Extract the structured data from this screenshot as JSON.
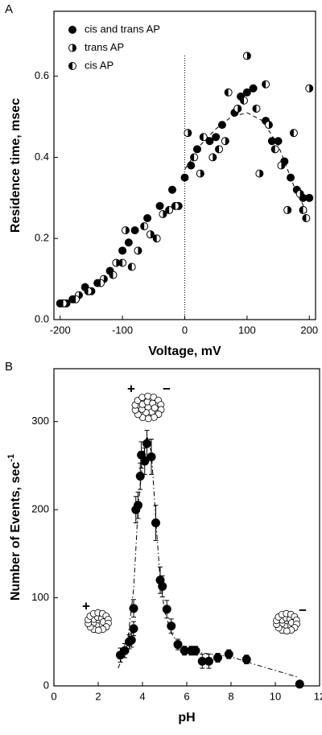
{
  "chart_data": [
    {
      "type": "scatter",
      "panel_label": "A",
      "x_label": "Voltage, mV",
      "y_label": "Residence time, msec",
      "xlim": [
        -210,
        210
      ],
      "ylim": [
        0,
        0.76
      ],
      "xticks": [
        -200,
        -100,
        0,
        100,
        200
      ],
      "yticks": [
        {
          "value": 0,
          "label": "0.0"
        },
        0.2,
        0.4,
        0.6
      ],
      "legend": "upper left",
      "vline": 0,
      "fit": {
        "x": [
          0,
          25,
          50,
          75,
          100,
          125,
          150,
          175,
          200
        ],
        "values": [
          0.37,
          0.43,
          0.47,
          0.5,
          0.51,
          0.49,
          0.43,
          0.33,
          0.25
        ],
        "dash": "dashed"
      },
      "series": [
        {
          "name": "cis and trans AP",
          "marker": "full",
          "color": "#000000",
          "x": [
            -200,
            -180,
            -160,
            -140,
            -120,
            -100,
            -90,
            -80,
            -60,
            -40,
            -20,
            0,
            10,
            20,
            40,
            50,
            60,
            80,
            90,
            100,
            110,
            130,
            140,
            150,
            160,
            170,
            180,
            190,
            200
          ],
          "values": [
            0.04,
            0.05,
            0.08,
            0.09,
            0.12,
            0.17,
            0.19,
            0.22,
            0.25,
            0.28,
            0.32,
            0.35,
            0.38,
            0.42,
            0.44,
            0.45,
            0.48,
            0.51,
            0.55,
            0.56,
            0.57,
            0.49,
            0.44,
            0.44,
            0.39,
            0.35,
            0.32,
            0.3,
            0.3
          ]
        },
        {
          "name": "trans AP",
          "marker": "half-right",
          "color": "#000000",
          "x": [
            -190,
            -170,
            -150,
            -130,
            -110,
            -95,
            -75,
            -55,
            -35,
            -10,
            5,
            25,
            45,
            65,
            85,
            100,
            120,
            135,
            155,
            165,
            185,
            200
          ],
          "values": [
            0.04,
            0.06,
            0.07,
            0.1,
            0.14,
            0.22,
            0.17,
            0.21,
            0.26,
            0.28,
            0.46,
            0.36,
            0.4,
            0.44,
            0.52,
            0.65,
            0.36,
            0.48,
            0.38,
            0.27,
            0.31,
            0.57
          ]
        },
        {
          "name": "cis AP",
          "marker": "half-left",
          "color": "#000000",
          "x": [
            -195,
            -175,
            -155,
            -135,
            -115,
            -100,
            -85,
            -65,
            -45,
            -25,
            -15,
            15,
            30,
            55,
            70,
            95,
            115,
            130,
            145,
            175,
            190,
            195
          ],
          "values": [
            0.04,
            0.05,
            0.07,
            0.09,
            0.11,
            0.14,
            0.13,
            0.23,
            0.2,
            0.27,
            0.28,
            0.4,
            0.45,
            0.42,
            0.56,
            0.54,
            0.52,
            0.58,
            0.42,
            0.46,
            0.27,
            0.25
          ]
        }
      ]
    },
    {
      "type": "scatter",
      "panel_label": "B",
      "x_label": "pH",
      "y_label": "Number of Events, sec",
      "y_label_superscript": "-1",
      "xlim": [
        0,
        12
      ],
      "ylim": [
        0,
        360
      ],
      "xticks": [
        0,
        2,
        4,
        6,
        8,
        10,
        12
      ],
      "yticks": [
        0,
        100,
        200,
        300
      ],
      "annotations": [
        "+",
        "−",
        "+",
        "−"
      ],
      "fit": {
        "x": [
          2.9,
          3.3,
          3.6,
          3.8,
          4.0,
          4.2,
          4.4,
          4.6,
          4.8,
          5.0,
          5.3,
          5.7,
          6.5,
          8,
          9,
          11
        ],
        "values": [
          20,
          45,
          110,
          200,
          255,
          285,
          265,
          190,
          120,
          85,
          60,
          45,
          38,
          33,
          25,
          10
        ],
        "dash": "dashdot"
      },
      "series": [
        {
          "marker": "full",
          "color": "#000000",
          "x": [
            3.0,
            3.2,
            3.4,
            3.5,
            3.6,
            3.6,
            3.7,
            3.8,
            3.9,
            3.95,
            4.1,
            4.2,
            4.4,
            4.6,
            4.8,
            4.9,
            5.1,
            5.3,
            5.6,
            5.9,
            6.2,
            6.4,
            6.7,
            7.0,
            7.4,
            7.9,
            8.7,
            11.1
          ],
          "values": [
            35,
            40,
            50,
            52,
            65,
            88,
            200,
            205,
            238,
            262,
            255,
            275,
            260,
            185,
            120,
            113,
            87,
            68,
            47,
            40,
            40,
            40,
            28,
            28,
            32,
            36,
            30,
            2
          ],
          "errors": [
            8,
            8,
            8,
            8,
            8,
            10,
            15,
            15,
            15,
            15,
            15,
            15,
            20,
            20,
            15,
            12,
            10,
            8,
            6,
            5,
            5,
            5,
            8,
            8,
            5,
            5,
            5,
            3
          ]
        }
      ]
    }
  ]
}
